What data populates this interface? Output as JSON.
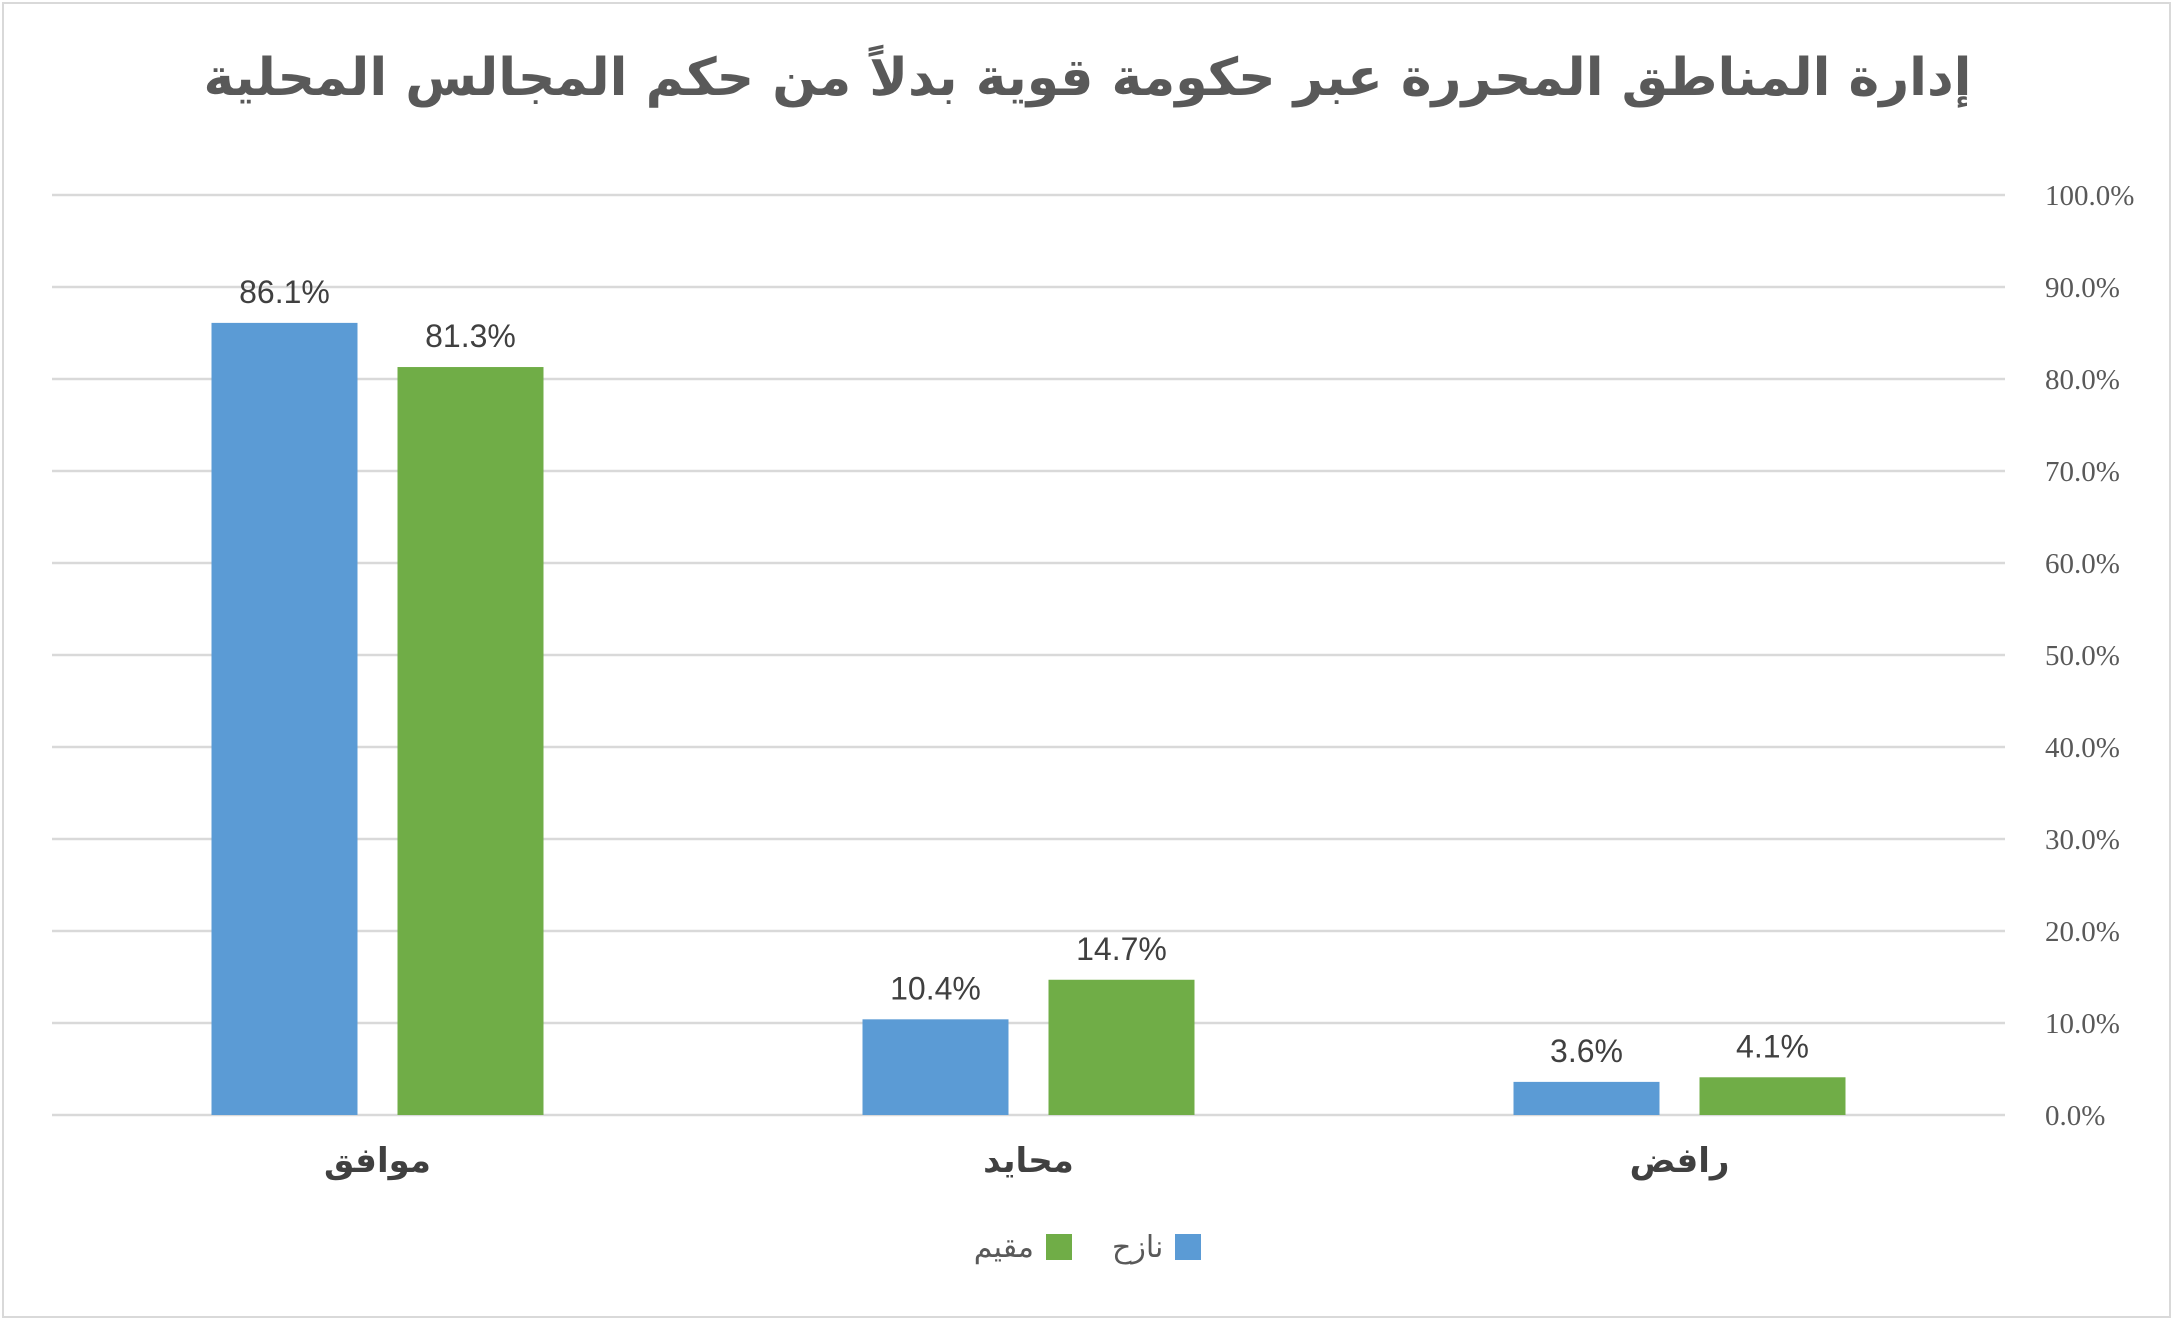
{
  "chart_data": {
    "type": "bar",
    "title": "إدارة المناطق المحررة عبر حكومة قوية بدلاً من حكم المجالس المحلية",
    "categories": [
      "موافق",
      "محايد",
      "رافض"
    ],
    "series": [
      {
        "name": "نازح",
        "color": "#5b9bd5",
        "values": [
          86.1,
          10.4,
          3.6
        ],
        "labels": [
          "86.1%",
          "10.4%",
          "3.6%"
        ]
      },
      {
        "name": "مقيم",
        "color": "#70ad47",
        "values": [
          81.3,
          14.7,
          4.1
        ],
        "labels": [
          "81.3%",
          "14.7%",
          "4.1%"
        ]
      }
    ],
    "y_ticks": [
      "0.0%",
      "10.0%",
      "20.0%",
      "30.0%",
      "40.0%",
      "50.0%",
      "60.0%",
      "70.0%",
      "80.0%",
      "90.0%",
      "100.0%"
    ],
    "ylim": [
      0,
      100
    ],
    "y_axis_side": "right",
    "category_order": "right-to-left",
    "grid": true,
    "legend_position": "bottom"
  }
}
